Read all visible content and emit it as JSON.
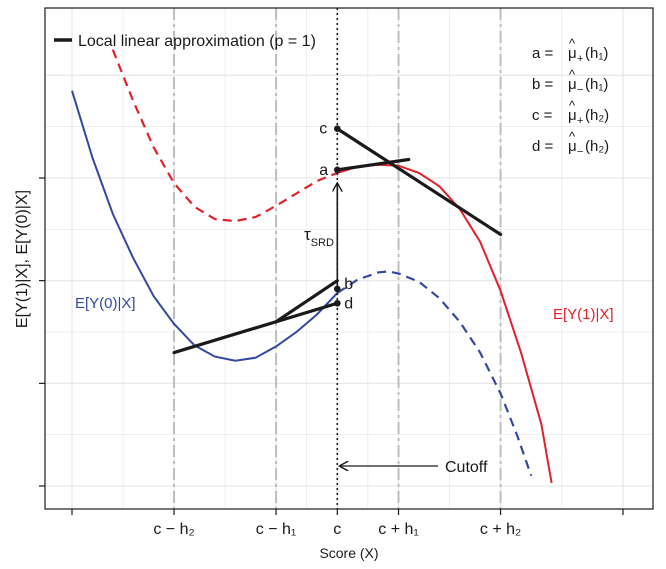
{
  "chart_data": {
    "type": "line",
    "title": "",
    "xlabel": "Score (X)",
    "ylabel": "E[Y(1)|X], E[Y(0)|X]",
    "xlim": [
      -0.5,
      2.3
    ],
    "ylim": [
      -0.25,
      4.35
    ],
    "x_ticks": [
      {
        "x": -0.5,
        "label": ""
      },
      {
        "x": 0.0,
        "label": "c − h₂"
      },
      {
        "x": 0.5,
        "label": "c − h₁"
      },
      {
        "x": 0.8,
        "label": "c"
      },
      {
        "x": 1.1,
        "label": "c + h₁"
      },
      {
        "x": 1.6,
        "label": "c + h₂"
      },
      {
        "x": 2.2,
        "label": ""
      }
    ],
    "y_ticks": [
      3.0,
      2.0,
      1.0,
      0.0
    ],
    "grid": true,
    "legend": {
      "position": "top-left",
      "entries": [
        "Local linear approximation (p = 1)"
      ]
    },
    "cutoff_x": 0.8,
    "series": [
      {
        "name": "E[Y(0)|X]",
        "color": "#3548a0",
        "solid": [
          [
            -0.5,
            3.85
          ],
          [
            -0.4,
            3.2
          ],
          [
            -0.3,
            2.65
          ],
          [
            -0.2,
            2.22
          ],
          [
            -0.1,
            1.85
          ],
          [
            0.0,
            1.58
          ],
          [
            0.1,
            1.37
          ],
          [
            0.2,
            1.26
          ],
          [
            0.3,
            1.22
          ],
          [
            0.4,
            1.25
          ],
          [
            0.5,
            1.36
          ],
          [
            0.6,
            1.5
          ],
          [
            0.7,
            1.67
          ],
          [
            0.8,
            1.88
          ]
        ],
        "dashed": [
          [
            0.8,
            1.88
          ],
          [
            0.9,
            2.01
          ],
          [
            1.0,
            2.08
          ],
          [
            1.05,
            2.09
          ],
          [
            1.1,
            2.07
          ],
          [
            1.2,
            1.99
          ],
          [
            1.3,
            1.83
          ],
          [
            1.4,
            1.6
          ],
          [
            1.5,
            1.3
          ],
          [
            1.6,
            0.9
          ],
          [
            1.68,
            0.5
          ],
          [
            1.75,
            0.1
          ]
        ]
      },
      {
        "name": "E[Y(1)|X]",
        "color": "#e0202a",
        "dashed": [
          [
            -0.3,
            4.25
          ],
          [
            -0.2,
            3.75
          ],
          [
            -0.1,
            3.3
          ],
          [
            0.0,
            2.95
          ],
          [
            0.1,
            2.72
          ],
          [
            0.2,
            2.6
          ],
          [
            0.3,
            2.58
          ],
          [
            0.4,
            2.62
          ],
          [
            0.5,
            2.73
          ],
          [
            0.6,
            2.85
          ],
          [
            0.7,
            2.97
          ],
          [
            0.8,
            3.05
          ]
        ],
        "solid": [
          [
            0.8,
            3.05
          ],
          [
            0.9,
            3.11
          ],
          [
            1.0,
            3.13
          ],
          [
            1.1,
            3.12
          ],
          [
            1.2,
            3.05
          ],
          [
            1.3,
            2.92
          ],
          [
            1.4,
            2.7
          ],
          [
            1.5,
            2.38
          ],
          [
            1.6,
            1.9
          ],
          [
            1.7,
            1.3
          ],
          [
            1.8,
            0.6
          ],
          [
            1.85,
            0.03
          ]
        ]
      }
    ],
    "approximation_lines": [
      {
        "from": [
          0.8,
          3.08
        ],
        "to": [
          1.15,
          3.18
        ]
      },
      {
        "from": [
          0.8,
          3.48
        ],
        "to": [
          1.6,
          2.45
        ]
      },
      {
        "from": [
          0.5,
          1.6
        ],
        "to": [
          0.8,
          2.0
        ]
      },
      {
        "from": [
          0.0,
          1.3
        ],
        "to": [
          0.8,
          1.78
        ]
      }
    ],
    "points": [
      {
        "label": "a",
        "x": 0.8,
        "y": 3.08
      },
      {
        "label": "b",
        "x": 0.8,
        "y": 1.92
      },
      {
        "label": "c",
        "x": 0.8,
        "y": 3.48
      },
      {
        "label": "d",
        "x": 0.8,
        "y": 1.78
      }
    ],
    "annotations": {
      "tau_base": "τ",
      "tau_sub": "SRD",
      "cutoff_label": "Cutoff",
      "label_y0": "E[Y(0)|X]",
      "label_y1": "E[Y(1)|X]",
      "definitions": [
        {
          "lhs": "a = ",
          "mu": "μ",
          "hat": "^",
          "sign": "+",
          "h": "(h₁)"
        },
        {
          "lhs": "b = ",
          "mu": "μ",
          "hat": "^",
          "sign": "−",
          "h": "(h₁)"
        },
        {
          "lhs": "c = ",
          "mu": "μ",
          "hat": "^",
          "sign": "+",
          "h": "(h₂)"
        },
        {
          "lhs": "d = ",
          "mu": "μ",
          "hat": "^",
          "sign": "−",
          "h": "(h₂)"
        }
      ]
    },
    "colors": {
      "y0": "#3548a0",
      "y1": "#e0202a",
      "approx": "#1a1a1a",
      "grid": "#e4e4e4",
      "band": "#bdbdbd"
    }
  }
}
